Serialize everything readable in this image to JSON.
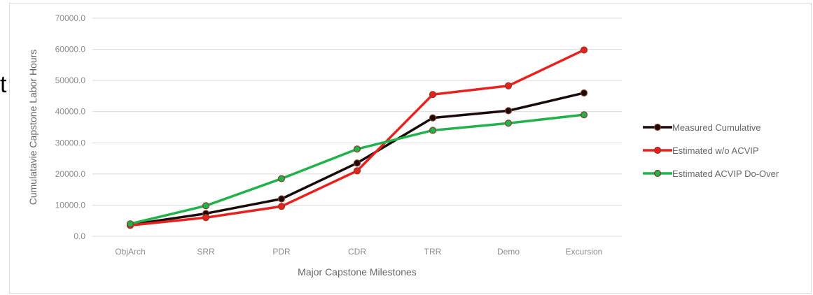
{
  "stray_text": "t",
  "chart_data": {
    "type": "line",
    "title": "",
    "xlabel": "Major Capstone Milestones",
    "ylabel": "Cumulatavie Capstone Labor Hours",
    "categories": [
      "ObjArch",
      "SRR",
      "PDR",
      "CDR",
      "TRR",
      "Demo",
      "Excursion"
    ],
    "ylim": [
      0,
      70000
    ],
    "y_ticks": [
      "0.0",
      "10000.0",
      "20000.0",
      "30000.0",
      "40000.0",
      "50000.0",
      "60000.0",
      "70000.0"
    ],
    "grid": true,
    "legend_position": "right",
    "series": [
      {
        "name": "Measured Cumulative",
        "color": "#1a0a0a",
        "values": [
          3700,
          7300,
          12000,
          23500,
          38000,
          40300,
          46000
        ]
      },
      {
        "name": "Estimated w/o ACVIP",
        "color": "#e8211e",
        "values": [
          3500,
          6000,
          9600,
          21000,
          45500,
          48300,
          59800
        ]
      },
      {
        "name": "Estimated ACVIP Do-Over",
        "color": "#21b24b",
        "values": [
          4000,
          9800,
          18500,
          28000,
          34000,
          36300,
          39000
        ]
      }
    ]
  }
}
